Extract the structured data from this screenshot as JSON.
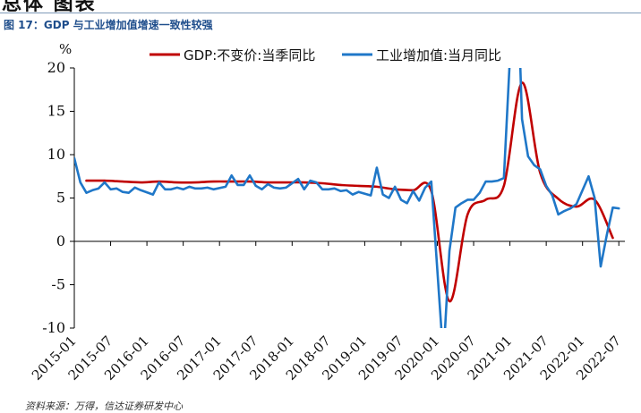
{
  "header": {
    "fragment": "总体 图表",
    "figure_title": "图 17：GDP 与工业增加值增速一致性较强"
  },
  "source": "资料来源：万得，信达证券研发中心",
  "colors": {
    "gdp": "#c00000",
    "industry": "#1f77c8",
    "axis": "#000000",
    "title": "#1f4e8c"
  },
  "chart_data": {
    "type": "line",
    "ylabel": "%",
    "ylim": [
      -10,
      20
    ],
    "yticks": [
      -10,
      -5,
      0,
      5,
      10,
      15,
      20
    ],
    "xlim": [
      "2015-01",
      "2022-08"
    ],
    "xticks": [
      "2015-01",
      "2015-07",
      "2016-01",
      "2016-07",
      "2017-01",
      "2017-07",
      "2018-01",
      "2018-07",
      "2019-01",
      "2019-07",
      "2020-01",
      "2020-07",
      "2021-01",
      "2021-07",
      "2022-01",
      "2022-07"
    ],
    "legend_position": "top",
    "series": [
      {
        "name": "GDP:不变价:当季同比",
        "style": "smooth",
        "points": [
          [
            "2015-03",
            7.0
          ],
          [
            "2015-06",
            7.0
          ],
          [
            "2015-09",
            6.9
          ],
          [
            "2015-12",
            6.8
          ],
          [
            "2016-03",
            6.9
          ],
          [
            "2016-06",
            6.8
          ],
          [
            "2016-09",
            6.8
          ],
          [
            "2016-12",
            6.9
          ],
          [
            "2017-03",
            6.9
          ],
          [
            "2017-06",
            6.9
          ],
          [
            "2017-09",
            6.8
          ],
          [
            "2017-12",
            6.8
          ],
          [
            "2018-03",
            6.8
          ],
          [
            "2018-06",
            6.7
          ],
          [
            "2018-09",
            6.5
          ],
          [
            "2018-12",
            6.4
          ],
          [
            "2019-03",
            6.3
          ],
          [
            "2019-06",
            6.0
          ],
          [
            "2019-09",
            5.9
          ],
          [
            "2019-12",
            5.8
          ],
          [
            "2020-03",
            -6.9
          ],
          [
            "2020-06",
            3.1
          ],
          [
            "2020-09",
            4.8
          ],
          [
            "2020-12",
            6.4
          ],
          [
            "2021-03",
            18.3
          ],
          [
            "2021-06",
            7.9
          ],
          [
            "2021-09",
            4.9
          ],
          [
            "2021-12",
            4.0
          ],
          [
            "2022-03",
            4.8
          ],
          [
            "2022-06",
            0.4
          ]
        ]
      },
      {
        "name": "工业增加值:当月同比",
        "style": "straight",
        "points": [
          [
            "2015-01",
            9.6
          ],
          [
            "2015-02",
            6.8
          ],
          [
            "2015-03",
            5.6
          ],
          [
            "2015-04",
            5.9
          ],
          [
            "2015-05",
            6.1
          ],
          [
            "2015-06",
            6.8
          ],
          [
            "2015-07",
            6.0
          ],
          [
            "2015-08",
            6.1
          ],
          [
            "2015-09",
            5.7
          ],
          [
            "2015-10",
            5.6
          ],
          [
            "2015-11",
            6.2
          ],
          [
            "2015-12",
            5.9
          ],
          [
            "2016-02",
            5.4
          ],
          [
            "2016-03",
            6.8
          ],
          [
            "2016-04",
            6.0
          ],
          [
            "2016-05",
            6.0
          ],
          [
            "2016-06",
            6.2
          ],
          [
            "2016-07",
            6.0
          ],
          [
            "2016-08",
            6.3
          ],
          [
            "2016-09",
            6.1
          ],
          [
            "2016-10",
            6.1
          ],
          [
            "2016-11",
            6.2
          ],
          [
            "2016-12",
            6.0
          ],
          [
            "2017-02",
            6.3
          ],
          [
            "2017-03",
            7.6
          ],
          [
            "2017-04",
            6.5
          ],
          [
            "2017-05",
            6.5
          ],
          [
            "2017-06",
            7.6
          ],
          [
            "2017-07",
            6.4
          ],
          [
            "2017-08",
            6.0
          ],
          [
            "2017-09",
            6.6
          ],
          [
            "2017-10",
            6.2
          ],
          [
            "2017-11",
            6.1
          ],
          [
            "2017-12",
            6.2
          ],
          [
            "2018-02",
            7.2
          ],
          [
            "2018-03",
            6.0
          ],
          [
            "2018-04",
            7.0
          ],
          [
            "2018-05",
            6.8
          ],
          [
            "2018-06",
            6.0
          ],
          [
            "2018-07",
            6.0
          ],
          [
            "2018-08",
            6.1
          ],
          [
            "2018-09",
            5.8
          ],
          [
            "2018-10",
            5.9
          ],
          [
            "2018-11",
            5.4
          ],
          [
            "2018-12",
            5.7
          ],
          [
            "2019-02",
            5.3
          ],
          [
            "2019-03",
            8.5
          ],
          [
            "2019-04",
            5.4
          ],
          [
            "2019-05",
            5.0
          ],
          [
            "2019-06",
            6.3
          ],
          [
            "2019-07",
            4.8
          ],
          [
            "2019-08",
            4.4
          ],
          [
            "2019-09",
            5.8
          ],
          [
            "2019-10",
            4.7
          ],
          [
            "2019-11",
            6.2
          ],
          [
            "2019-12",
            6.9
          ],
          [
            "2020-02",
            -13.5
          ],
          [
            "2020-03",
            -1.1
          ],
          [
            "2020-04",
            3.9
          ],
          [
            "2020-05",
            4.4
          ],
          [
            "2020-06",
            4.8
          ],
          [
            "2020-07",
            4.8
          ],
          [
            "2020-08",
            5.6
          ],
          [
            "2020-09",
            6.9
          ],
          [
            "2020-10",
            6.9
          ],
          [
            "2020-11",
            7.0
          ],
          [
            "2020-12",
            7.3
          ],
          [
            "2021-02",
            35.1
          ],
          [
            "2021-03",
            14.1
          ],
          [
            "2021-04",
            9.8
          ],
          [
            "2021-05",
            8.8
          ],
          [
            "2021-06",
            8.3
          ],
          [
            "2021-07",
            6.4
          ],
          [
            "2021-08",
            5.3
          ],
          [
            "2021-09",
            3.1
          ],
          [
            "2021-10",
            3.5
          ],
          [
            "2021-11",
            3.8
          ],
          [
            "2021-12",
            4.3
          ],
          [
            "2022-02",
            7.5
          ],
          [
            "2022-03",
            5.0
          ],
          [
            "2022-04",
            -2.9
          ],
          [
            "2022-05",
            0.7
          ],
          [
            "2022-06",
            3.9
          ],
          [
            "2022-07",
            3.8
          ]
        ]
      }
    ]
  }
}
